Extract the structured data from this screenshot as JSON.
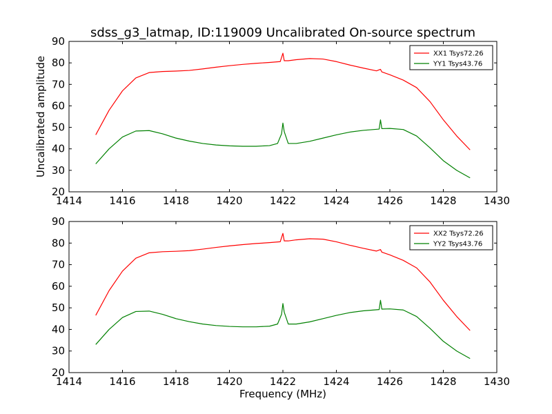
{
  "figure": {
    "title": "sdss_g3_latmap, ID:119009 Uncalibrated On-source spectrum",
    "ylabel": "Uncalibrated amplitude",
    "xlabel": "Frequency (MHz)"
  },
  "chart_data": [
    {
      "type": "line",
      "xlim": [
        1414,
        1430
      ],
      "ylim": [
        20,
        90
      ],
      "xticks": [
        1414,
        1416,
        1418,
        1420,
        1422,
        1424,
        1426,
        1428,
        1430
      ],
      "yticks": [
        20,
        30,
        40,
        50,
        60,
        70,
        80,
        90
      ],
      "grid": false,
      "legend_position": "top-right",
      "series": [
        {
          "name": "XX1 Tsys72.26",
          "color": "#ff0000",
          "x": [
            1415.0,
            1415.5,
            1416.0,
            1416.5,
            1417.0,
            1417.5,
            1418.0,
            1418.5,
            1419.0,
            1419.5,
            1420.0,
            1420.5,
            1421.0,
            1421.5,
            1421.9,
            1422.0,
            1422.05,
            1422.2,
            1422.5,
            1423.0,
            1423.5,
            1424.0,
            1424.5,
            1425.0,
            1425.5,
            1425.65,
            1425.7,
            1426.0,
            1426.5,
            1427.0,
            1427.5,
            1428.0,
            1428.5,
            1429.0
          ],
          "y": [
            46.5,
            58.0,
            67.0,
            73.0,
            75.5,
            76.0,
            76.2,
            76.5,
            77.2,
            78.0,
            78.7,
            79.3,
            79.8,
            80.2,
            80.6,
            84.5,
            81.0,
            81.0,
            81.5,
            82.0,
            81.8,
            80.6,
            79.0,
            77.6,
            76.3,
            77.0,
            75.8,
            74.5,
            72.0,
            68.5,
            62.0,
            53.5,
            46.0,
            39.5
          ]
        },
        {
          "name": "YY1 Tsys43.76",
          "color": "#008000",
          "x": [
            1415.0,
            1415.5,
            1416.0,
            1416.5,
            1417.0,
            1417.5,
            1418.0,
            1418.5,
            1419.0,
            1419.5,
            1420.0,
            1420.5,
            1421.0,
            1421.5,
            1421.8,
            1421.95,
            1422.0,
            1422.05,
            1422.2,
            1422.5,
            1423.0,
            1423.5,
            1424.0,
            1424.5,
            1425.0,
            1425.6,
            1425.65,
            1425.7,
            1426.0,
            1426.5,
            1427.0,
            1427.5,
            1428.0,
            1428.5,
            1429.0
          ],
          "y": [
            33.0,
            40.0,
            45.5,
            48.3,
            48.5,
            47.0,
            45.0,
            43.6,
            42.5,
            41.8,
            41.4,
            41.2,
            41.2,
            41.5,
            42.5,
            47.0,
            52.0,
            48.0,
            42.5,
            42.5,
            43.5,
            45.0,
            46.5,
            47.8,
            48.6,
            49.2,
            53.5,
            49.4,
            49.5,
            49.0,
            46.0,
            40.5,
            34.5,
            30.0,
            26.5
          ]
        }
      ]
    },
    {
      "type": "line",
      "xlim": [
        1414,
        1430
      ],
      "ylim": [
        20,
        90
      ],
      "xticks": [
        1414,
        1416,
        1418,
        1420,
        1422,
        1424,
        1426,
        1428,
        1430
      ],
      "yticks": [
        20,
        30,
        40,
        50,
        60,
        70,
        80,
        90
      ],
      "grid": false,
      "legend_position": "top-right",
      "series": [
        {
          "name": "XX2 Tsys72.26",
          "color": "#ff0000",
          "x": [
            1415.0,
            1415.5,
            1416.0,
            1416.5,
            1417.0,
            1417.5,
            1418.0,
            1418.5,
            1419.0,
            1419.5,
            1420.0,
            1420.5,
            1421.0,
            1421.5,
            1421.9,
            1422.0,
            1422.05,
            1422.2,
            1422.5,
            1423.0,
            1423.5,
            1424.0,
            1424.5,
            1425.0,
            1425.5,
            1425.65,
            1425.7,
            1426.0,
            1426.5,
            1427.0,
            1427.5,
            1428.0,
            1428.5,
            1429.0
          ],
          "y": [
            46.5,
            58.0,
            67.0,
            73.0,
            75.5,
            76.0,
            76.2,
            76.5,
            77.2,
            78.0,
            78.7,
            79.3,
            79.8,
            80.2,
            80.6,
            84.5,
            81.0,
            81.0,
            81.5,
            82.0,
            81.8,
            80.6,
            79.0,
            77.6,
            76.3,
            77.0,
            75.8,
            74.5,
            72.0,
            68.5,
            62.0,
            53.5,
            46.0,
            39.5
          ]
        },
        {
          "name": "YY2 Tsys43.76",
          "color": "#008000",
          "x": [
            1415.0,
            1415.5,
            1416.0,
            1416.5,
            1417.0,
            1417.5,
            1418.0,
            1418.5,
            1419.0,
            1419.5,
            1420.0,
            1420.5,
            1421.0,
            1421.5,
            1421.8,
            1421.95,
            1422.0,
            1422.05,
            1422.2,
            1422.5,
            1423.0,
            1423.5,
            1424.0,
            1424.5,
            1425.0,
            1425.6,
            1425.65,
            1425.7,
            1426.0,
            1426.5,
            1427.0,
            1427.5,
            1428.0,
            1428.5,
            1429.0
          ],
          "y": [
            33.0,
            40.0,
            45.5,
            48.3,
            48.5,
            47.0,
            45.0,
            43.6,
            42.5,
            41.8,
            41.4,
            41.2,
            41.2,
            41.5,
            42.5,
            47.0,
            52.0,
            48.0,
            42.5,
            42.5,
            43.5,
            45.0,
            46.5,
            47.8,
            48.6,
            49.2,
            53.5,
            49.4,
            49.5,
            49.0,
            46.0,
            40.5,
            34.5,
            30.0,
            26.5
          ]
        }
      ]
    }
  ]
}
